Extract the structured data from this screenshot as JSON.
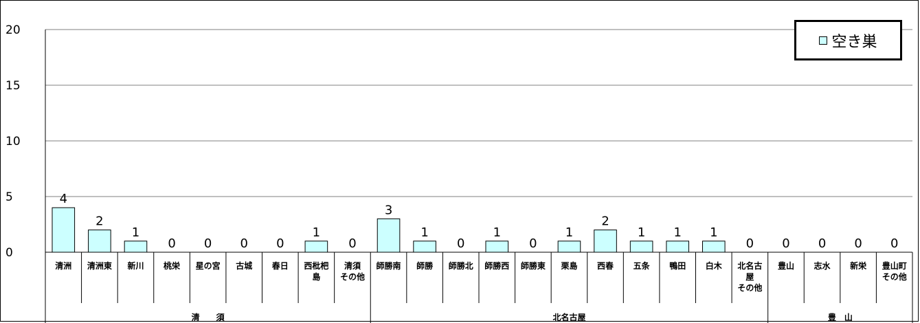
{
  "chart_data": {
    "type": "bar",
    "categories": [
      [
        "清洲"
      ],
      [
        "清洲東"
      ],
      [
        "新川"
      ],
      [
        "桃栄"
      ],
      [
        "星の宮"
      ],
      [
        "古城"
      ],
      [
        "春日"
      ],
      [
        "西枇杷",
        "島"
      ],
      [
        "清須",
        "その他"
      ],
      [
        "師勝南"
      ],
      [
        "師勝"
      ],
      [
        "師勝北"
      ],
      [
        "師勝西"
      ],
      [
        "師勝東"
      ],
      [
        "栗島"
      ],
      [
        "西春"
      ],
      [
        "五条"
      ],
      [
        "鴨田"
      ],
      [
        "白木"
      ],
      [
        "北名古",
        "屋",
        "その他"
      ],
      [
        "豊山"
      ],
      [
        "志水"
      ],
      [
        "新栄"
      ],
      [
        "豊山町",
        "その他"
      ]
    ],
    "series": [
      {
        "name": "空き巣",
        "values": [
          4,
          2,
          1,
          0,
          0,
          0,
          0,
          1,
          0,
          3,
          1,
          0,
          1,
          0,
          1,
          2,
          1,
          1,
          1,
          0,
          0,
          0,
          0,
          0
        ]
      }
    ],
    "groups": [
      {
        "label": "清　　須",
        "start": 0,
        "end": 8
      },
      {
        "label": "北名古屋",
        "start": 9,
        "end": 19
      },
      {
        "label": "豊　山",
        "start": 20,
        "end": 23
      }
    ],
    "yticks": [
      0,
      5,
      10,
      15,
      20
    ],
    "ylim": [
      0,
      20
    ],
    "grid": true,
    "legend": "top-right",
    "bar_color": "#ccffff",
    "bar_stroke": "#000000"
  }
}
